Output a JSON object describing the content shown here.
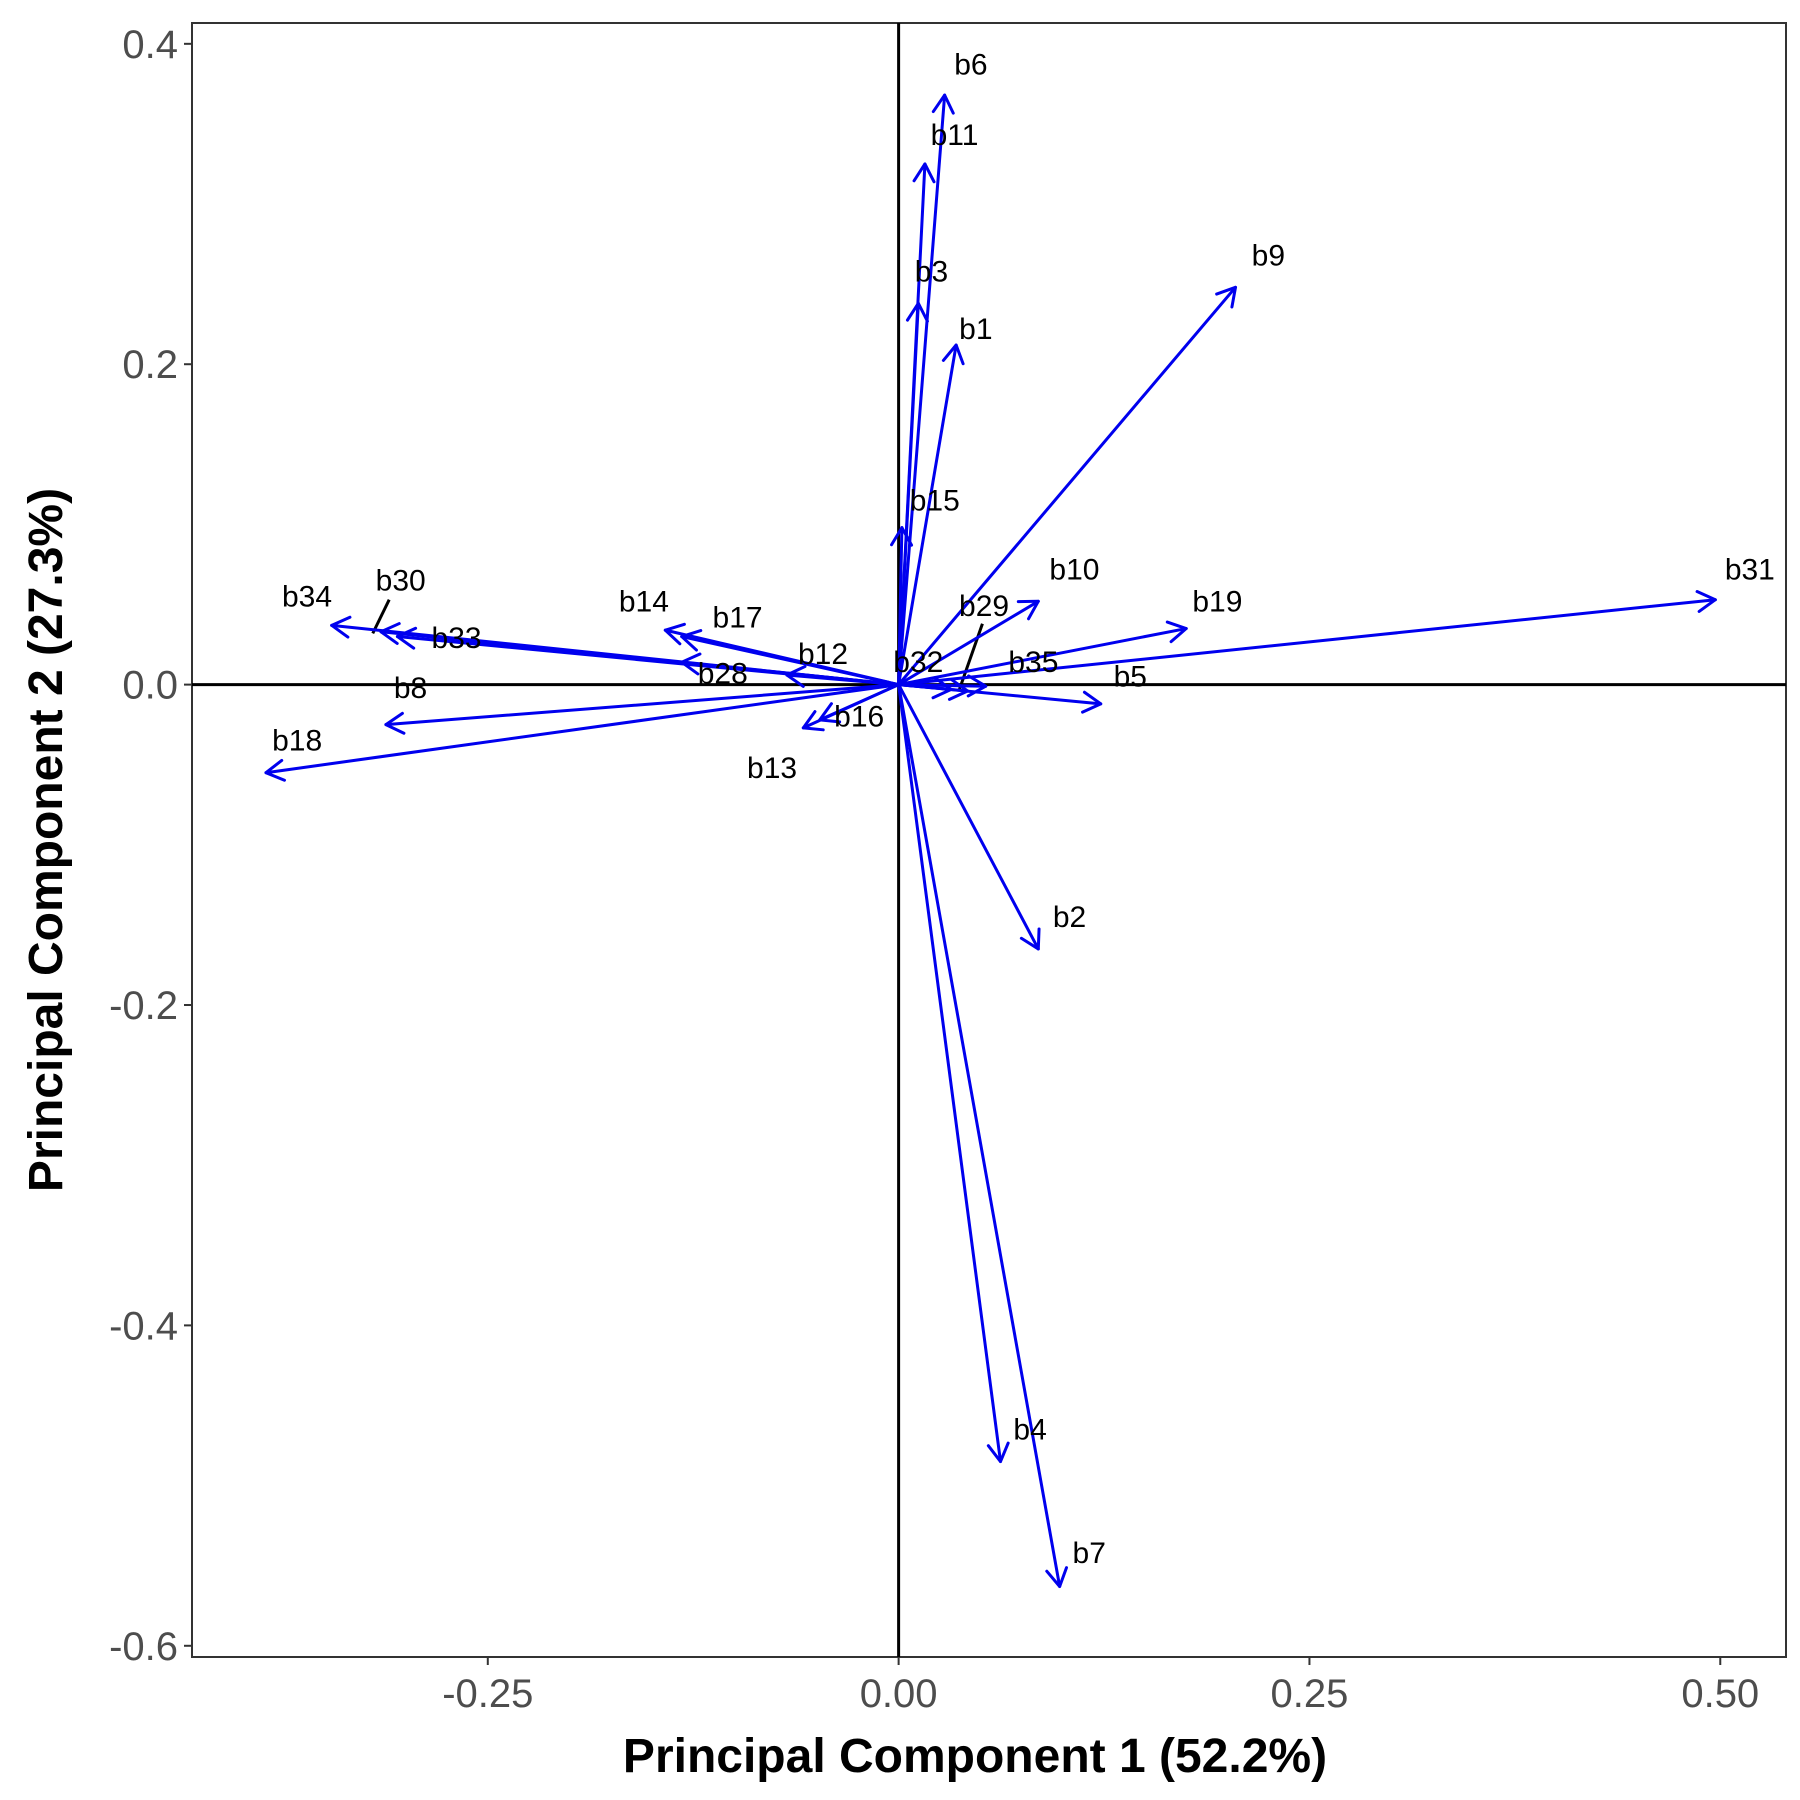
{
  "chart_data": {
    "type": "biplot",
    "xlabel": "Principal Component 1 (52.2%)",
    "ylabel": "Principal Component 2 (27.3%)",
    "xlim": [
      -0.43,
      0.54
    ],
    "ylim": [
      -0.607,
      0.413
    ],
    "x_ticks": [
      {
        "value": -0.25,
        "label": "-0.25"
      },
      {
        "value": 0,
        "label": "0.00"
      },
      {
        "value": 0.25,
        "label": "0.25"
      },
      {
        "value": 0.5,
        "label": "0.50"
      }
    ],
    "y_ticks": [
      {
        "value": 0.4,
        "label": "0.4"
      },
      {
        "value": 0.2,
        "label": "0.2"
      },
      {
        "value": 0,
        "label": "0.0"
      },
      {
        "value": -0.2,
        "label": "-0.2"
      },
      {
        "value": -0.4,
        "label": "-0.4"
      },
      {
        "value": -0.6,
        "label": "-0.6"
      }
    ],
    "grid": false,
    "reference_lines": {
      "x": 0,
      "y": 0
    },
    "arrow_color": "#0000ee",
    "vectors": [
      {
        "name": "b1",
        "x": 0.035,
        "y": 0.212
      },
      {
        "name": "b2",
        "x": 0.085,
        "y": -0.165
      },
      {
        "name": "b3",
        "x": 0.012,
        "y": 0.238
      },
      {
        "name": "b4",
        "x": 0.062,
        "y": -0.485
      },
      {
        "name": "b5",
        "x": 0.123,
        "y": -0.012
      },
      {
        "name": "b6",
        "x": 0.028,
        "y": 0.368
      },
      {
        "name": "b7",
        "x": 0.098,
        "y": -0.563
      },
      {
        "name": "b8",
        "x": -0.312,
        "y": -0.025
      },
      {
        "name": "b9",
        "x": 0.205,
        "y": 0.248
      },
      {
        "name": "b10",
        "x": 0.085,
        "y": 0.052
      },
      {
        "name": "b11",
        "x": 0.016,
        "y": 0.325
      },
      {
        "name": "b12",
        "x": -0.068,
        "y": 0.006
      },
      {
        "name": "b13",
        "x": -0.058,
        "y": -0.027
      },
      {
        "name": "b14",
        "x": -0.142,
        "y": 0.034
      },
      {
        "name": "b15",
        "x": 0.002,
        "y": 0.098
      },
      {
        "name": "b16",
        "x": -0.048,
        "y": -0.022
      },
      {
        "name": "b17",
        "x": -0.132,
        "y": 0.03
      },
      {
        "name": "b18",
        "x": -0.385,
        "y": -0.055
      },
      {
        "name": "b19",
        "x": 0.175,
        "y": 0.035
      },
      {
        "name": "b28",
        "x": -0.132,
        "y": 0.014
      },
      {
        "name": "b29",
        "x": 0.032,
        "y": -0.003
      },
      {
        "name": "b30",
        "x": -0.315,
        "y": 0.033
      },
      {
        "name": "b31",
        "x": 0.497,
        "y": 0.053
      },
      {
        "name": "b32",
        "x": 0.042,
        "y": -0.004
      },
      {
        "name": "b33",
        "x": -0.305,
        "y": 0.03
      },
      {
        "name": "b34",
        "x": -0.345,
        "y": 0.037
      },
      {
        "name": "b35",
        "x": 0.053,
        "y": -0.001
      }
    ],
    "labels": [
      {
        "text": "b1",
        "x": 0.047,
        "y": 0.222
      },
      {
        "text": "b2",
        "x": 0.104,
        "y": -0.145
      },
      {
        "text": "b3",
        "x": 0.02,
        "y": 0.258
      },
      {
        "text": "b4",
        "x": 0.08,
        "y": -0.465
      },
      {
        "text": "b5",
        "x": 0.141,
        "y": 0.005
      },
      {
        "text": "b6",
        "x": 0.044,
        "y": 0.387
      },
      {
        "text": "b7",
        "x": 0.116,
        "y": -0.542
      },
      {
        "text": "b8",
        "x": -0.297,
        "y": -0.002
      },
      {
        "text": "b9",
        "x": 0.225,
        "y": 0.268
      },
      {
        "text": "b10",
        "x": 0.107,
        "y": 0.072
      },
      {
        "text": "b11",
        "x": 0.034,
        "y": 0.343
      },
      {
        "text": "b12",
        "x": -0.046,
        "y": 0.019
      },
      {
        "text": "b13",
        "x": -0.077,
        "y": -0.052
      },
      {
        "text": "b14",
        "x": -0.155,
        "y": 0.052
      },
      {
        "text": "b15",
        "x": 0.022,
        "y": 0.115
      },
      {
        "text": "b16",
        "x": -0.024,
        "y": -0.02
      },
      {
        "text": "b17",
        "x": -0.098,
        "y": 0.042
      },
      {
        "text": "b18",
        "x": -0.366,
        "y": -0.035
      },
      {
        "text": "b19",
        "x": 0.194,
        "y": 0.052
      },
      {
        "text": "b28",
        "x": -0.107,
        "y": 0.007
      },
      {
        "text": "b29",
        "x": 0.052,
        "y": 0.049
      },
      {
        "text": "b30",
        "x": -0.303,
        "y": 0.065
      },
      {
        "text": "b31",
        "x": 0.518,
        "y": 0.072
      },
      {
        "text": "b32",
        "x": 0.012,
        "y": 0.014
      },
      {
        "text": "b33",
        "x": -0.269,
        "y": 0.029
      },
      {
        "text": "b34",
        "x": -0.36,
        "y": 0.055
      },
      {
        "text": "b35",
        "x": 0.082,
        "y": 0.014
      }
    ],
    "leader_lines": [
      {
        "label": "b30",
        "from": [
          -0.32,
          0.032
        ],
        "to": [
          -0.31,
          0.053
        ]
      },
      {
        "label": "b29",
        "from": [
          0.037,
          -0.003
        ],
        "to": [
          0.051,
          0.038
        ]
      }
    ]
  }
}
